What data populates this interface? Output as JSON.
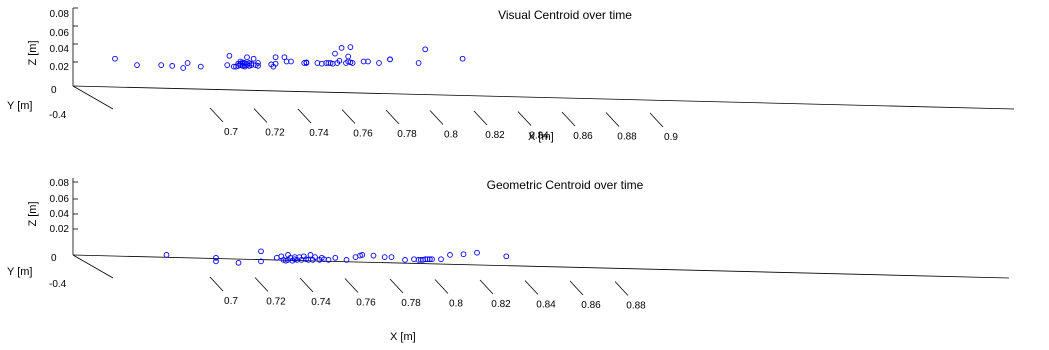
{
  "chart_data": [
    {
      "type": "scatter",
      "title": "Visual Centroid over time",
      "xlabel": "X [m]",
      "ylabel": "Y [m]",
      "zlabel": "Z [m]",
      "xlim": [
        0.69,
        0.9
      ],
      "ylim": [
        -0.4,
        0
      ],
      "zlim": [
        0,
        0.08
      ],
      "x_ticks": [
        "0.7",
        "0.72",
        "0.74",
        "0.76",
        "0.78",
        "0.8",
        "0.82",
        "0.84",
        "0.86",
        "0.88",
        "0.9"
      ],
      "y_ticks": [
        "0",
        "-0.4"
      ],
      "z_ticks": [
        "0.08",
        "0.06",
        "0.04",
        "0.02"
      ],
      "marker_color": "#0000ff",
      "points": [
        {
          "x": 0.695,
          "z": 0.022
        },
        {
          "x": 0.705,
          "z": 0.013
        },
        {
          "x": 0.716,
          "z": 0.013
        },
        {
          "x": 0.721,
          "z": 0.012
        },
        {
          "x": 0.726,
          "z": 0.009
        },
        {
          "x": 0.728,
          "z": 0.016
        },
        {
          "x": 0.734,
          "z": 0.011
        },
        {
          "x": 0.746,
          "z": 0.013
        },
        {
          "x": 0.747,
          "z": 0.026
        },
        {
          "x": 0.749,
          "z": 0.011
        },
        {
          "x": 0.75,
          "z": 0.011
        },
        {
          "x": 0.751,
          "z": 0.015
        },
        {
          "x": 0.751,
          "z": 0.012
        },
        {
          "x": 0.752,
          "z": 0.013
        },
        {
          "x": 0.752,
          "z": 0.015
        },
        {
          "x": 0.752,
          "z": 0.018
        },
        {
          "x": 0.753,
          "z": 0.012
        },
        {
          "x": 0.753,
          "z": 0.017
        },
        {
          "x": 0.753,
          "z": 0.015
        },
        {
          "x": 0.754,
          "z": 0.013
        },
        {
          "x": 0.754,
          "z": 0.011
        },
        {
          "x": 0.754,
          "z": 0.016
        },
        {
          "x": 0.755,
          "z": 0.013
        },
        {
          "x": 0.755,
          "z": 0.015
        },
        {
          "x": 0.755,
          "z": 0.024
        },
        {
          "x": 0.756,
          "z": 0.012
        },
        {
          "x": 0.756,
          "z": 0.016
        },
        {
          "x": 0.757,
          "z": 0.013
        },
        {
          "x": 0.757,
          "z": 0.015
        },
        {
          "x": 0.758,
          "z": 0.022
        },
        {
          "x": 0.759,
          "z": 0.013
        },
        {
          "x": 0.76,
          "z": 0.012
        },
        {
          "x": 0.76,
          "z": 0.016
        },
        {
          "x": 0.766,
          "z": 0.014
        },
        {
          "x": 0.767,
          "z": 0.011
        },
        {
          "x": 0.768,
          "z": 0.024
        },
        {
          "x": 0.768,
          "z": 0.015
        },
        {
          "x": 0.772,
          "z": 0.024
        },
        {
          "x": 0.773,
          "z": 0.018
        },
        {
          "x": 0.775,
          "z": 0.018
        },
        {
          "x": 0.781,
          "z": 0.016
        },
        {
          "x": 0.782,
          "z": 0.016
        },
        {
          "x": 0.782,
          "z": 0.017
        },
        {
          "x": 0.787,
          "z": 0.016
        },
        {
          "x": 0.789,
          "z": 0.015
        },
        {
          "x": 0.791,
          "z": 0.016
        },
        {
          "x": 0.792,
          "z": 0.016
        },
        {
          "x": 0.793,
          "z": 0.016
        },
        {
          "x": 0.794,
          "z": 0.015
        },
        {
          "x": 0.795,
          "z": 0.029
        },
        {
          "x": 0.796,
          "z": 0.016
        },
        {
          "x": 0.797,
          "z": 0.019
        },
        {
          "x": 0.798,
          "z": 0.037
        },
        {
          "x": 0.8,
          "z": 0.016
        },
        {
          "x": 0.801,
          "z": 0.018
        },
        {
          "x": 0.801,
          "z": 0.025
        },
        {
          "x": 0.802,
          "z": 0.038
        },
        {
          "x": 0.802,
          "z": 0.017
        },
        {
          "x": 0.803,
          "z": 0.016
        },
        {
          "x": 0.808,
          "z": 0.018
        },
        {
          "x": 0.81,
          "z": 0.018
        },
        {
          "x": 0.815,
          "z": 0.016
        },
        {
          "x": 0.82,
          "z": 0.021
        },
        {
          "x": 0.82,
          "z": 0.021
        },
        {
          "x": 0.833,
          "z": 0.016
        },
        {
          "x": 0.836,
          "z": 0.035
        },
        {
          "x": 0.853,
          "z": 0.022
        }
      ]
    },
    {
      "type": "scatter",
      "title": "Geometric Centroid over time",
      "xlabel": "X [m]",
      "ylabel": "Y [m]",
      "zlabel": "Z [m]",
      "xlim": [
        0.69,
        0.89
      ],
      "ylim": [
        -0.4,
        0
      ],
      "zlim": [
        0,
        0.08
      ],
      "x_ticks": [
        "0.7",
        "0.72",
        "0.74",
        "0.76",
        "0.78",
        "0.8",
        "0.82",
        "0.84",
        "0.86",
        "0.88"
      ],
      "y_ticks": [
        "0",
        "-0.4"
      ],
      "z_ticks": [
        "0.08",
        "0.06",
        "0.04",
        "0.02"
      ],
      "marker_color": "#0000ff",
      "points": [
        {
          "x": 0.718,
          "z": 0.005
        },
        {
          "x": 0.74,
          "z": 0.001
        },
        {
          "x": 0.74,
          "z": -0.004
        },
        {
          "x": 0.75,
          "z": -0.006
        },
        {
          "x": 0.76,
          "z": 0.01
        },
        {
          "x": 0.76,
          "z": -0.004
        },
        {
          "x": 0.767,
          "z": 0.001
        },
        {
          "x": 0.769,
          "z": 0.003
        },
        {
          "x": 0.77,
          "z": -0.002
        },
        {
          "x": 0.771,
          "z": -0.003
        },
        {
          "x": 0.772,
          "z": 0.005
        },
        {
          "x": 0.772,
          "z": -0.002
        },
        {
          "x": 0.773,
          "z": 0.001
        },
        {
          "x": 0.774,
          "z": -0.003
        },
        {
          "x": 0.775,
          "z": -0.001
        },
        {
          "x": 0.775,
          "z": 0.002
        },
        {
          "x": 0.776,
          "z": -0.002
        },
        {
          "x": 0.777,
          "z": 0.002
        },
        {
          "x": 0.778,
          "z": -0.002
        },
        {
          "x": 0.779,
          "z": 0.003
        },
        {
          "x": 0.78,
          "z": -0.001
        },
        {
          "x": 0.781,
          "z": -0.002
        },
        {
          "x": 0.782,
          "z": 0.005
        },
        {
          "x": 0.783,
          "z": -0.002
        },
        {
          "x": 0.784,
          "z": 0.002
        },
        {
          "x": 0.786,
          "z": -0.002
        },
        {
          "x": 0.787,
          "z": 0.001
        },
        {
          "x": 0.788,
          "z": -0.001
        },
        {
          "x": 0.79,
          "z": -0.002
        },
        {
          "x": 0.793,
          "z": 0.001
        },
        {
          "x": 0.798,
          "z": -0.002
        },
        {
          "x": 0.802,
          "z": 0.002
        },
        {
          "x": 0.804,
          "z": 0.004
        },
        {
          "x": 0.805,
          "z": 0.005
        },
        {
          "x": 0.81,
          "z": 0.004
        },
        {
          "x": 0.815,
          "z": 0.002
        },
        {
          "x": 0.818,
          "z": 0.002
        },
        {
          "x": 0.824,
          "z": -0.002
        },
        {
          "x": 0.828,
          "z": -0.001
        },
        {
          "x": 0.83,
          "z": -0.002
        },
        {
          "x": 0.831,
          "z": -0.002
        },
        {
          "x": 0.832,
          "z": -0.002
        },
        {
          "x": 0.833,
          "z": -0.001
        },
        {
          "x": 0.834,
          "z": -0.001
        },
        {
          "x": 0.835,
          "z": -0.001
        },
        {
          "x": 0.836,
          "z": -0.001
        },
        {
          "x": 0.84,
          "z": -0.001
        },
        {
          "x": 0.844,
          "z": 0.005
        },
        {
          "x": 0.85,
          "z": 0.006
        },
        {
          "x": 0.856,
          "z": 0.008
        },
        {
          "x": 0.869,
          "z": 0.003
        }
      ]
    }
  ]
}
